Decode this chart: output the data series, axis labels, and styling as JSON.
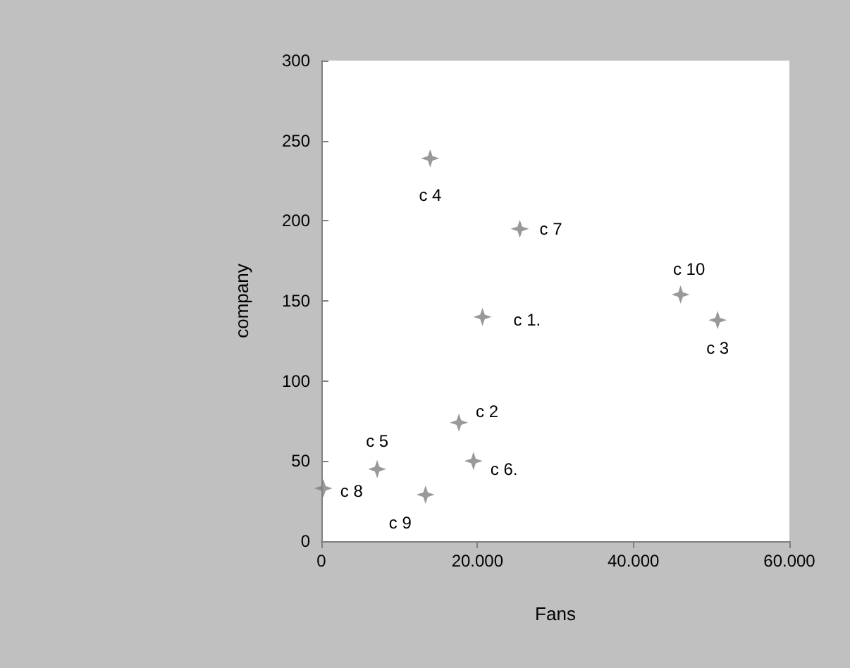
{
  "chart_data": {
    "type": "scatter",
    "xlabel": "Fans",
    "ylabel": "company",
    "x": [
      20650,
      17630,
      50800,
      13950,
      7150,
      19500,
      25440,
      250,
      13350,
      46050
    ],
    "values": [
      140,
      74,
      138,
      239,
      45,
      50,
      195,
      33,
      29,
      154
    ],
    "color": "#808080",
    "marker": "diamond",
    "grid": false,
    "xlim": [
      0,
      60000
    ],
    "xticks": [
      0,
      {
        "value": 20000,
        "label": "20.000"
      },
      {
        "value": 40000,
        "label": "40.000"
      },
      {
        "value": 60000,
        "label": "60.000"
      }
    ],
    "ylim": [
      0,
      300
    ],
    "yticks": [
      0,
      50,
      100,
      150,
      200,
      250,
      300
    ],
    "annotations": [
      {
        "text": "c 1.",
        "x": 20650,
        "y": 140
      },
      {
        "text": "c 2",
        "x": 17630,
        "y": 74
      },
      {
        "text": "c 3",
        "x": 50800,
        "y": 138
      },
      {
        "text": "c 4",
        "x": 13950,
        "y": 239
      },
      {
        "text": "c 5",
        "x": 7150,
        "y": 45
      },
      {
        "text": "c 6.",
        "x": 19500,
        "y": 50
      },
      {
        "text": "c 7",
        "x": 25440,
        "y": 195
      },
      {
        "text": "c 8",
        "x": 250,
        "y": 33
      },
      {
        "text": "c 9",
        "x": 13350,
        "y": 29
      },
      {
        "text": "c 10",
        "x": 46050,
        "y": 154
      }
    ]
  }
}
